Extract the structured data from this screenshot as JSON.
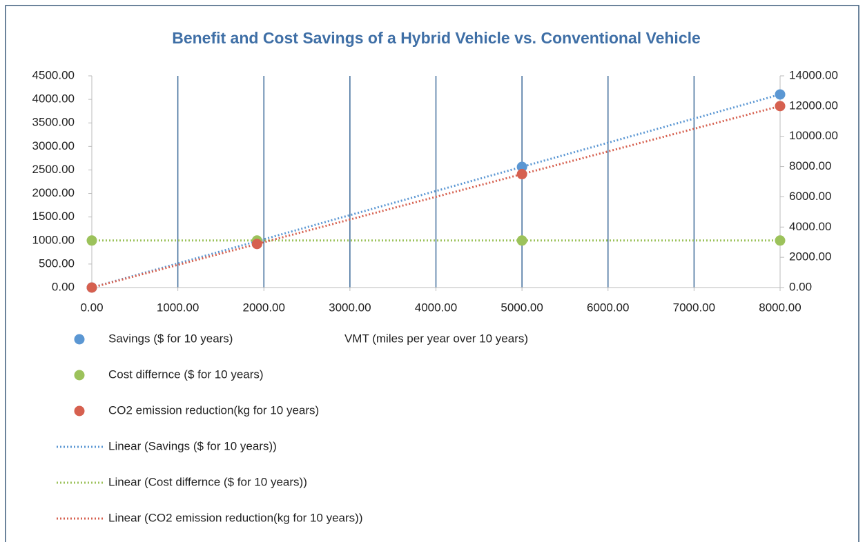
{
  "chart_data": {
    "type": "scatter",
    "title": "Benefit and Cost Savings of a Hybrid Vehicle vs. Conventional Vehicle",
    "xlabel": "VMT (miles per year over 10 years)",
    "x": [
      0,
      1920,
      5000,
      8000
    ],
    "series": [
      {
        "name": "Savings ($ for 10 years)",
        "trendline_name": "Linear (Savings ($ for 10 years))",
        "color": "#5b97d3",
        "values": [
          0,
          985,
          2565,
          4105
        ]
      },
      {
        "name": "Cost differnce ($ for 10 years)",
        "trendline_name": "Linear (Cost differnce ($ for 10 years))",
        "color": "#9cc25b",
        "values": [
          1000,
          1000,
          1000,
          1000
        ]
      },
      {
        "name": "CO2 emission reduction(kg for 10 years)",
        "trendline_name": "Linear (CO2 emission reduction(kg for 10 years))",
        "color": "#d6604f",
        "axis": "y2",
        "values": [
          0,
          2880,
          7500,
          12000
        ]
      }
    ],
    "xlim": [
      0,
      8000
    ],
    "xticks": [
      {
        "value": 0,
        "label": "0.00"
      },
      {
        "value": 1000,
        "label": "1000.00"
      },
      {
        "value": 2000,
        "label": "2000.00"
      },
      {
        "value": 3000,
        "label": "3000.00"
      },
      {
        "value": 4000,
        "label": "4000.00"
      },
      {
        "value": 5000,
        "label": "5000.00"
      },
      {
        "value": 6000,
        "label": "6000.00"
      },
      {
        "value": 7000,
        "label": "7000.00"
      },
      {
        "value": 8000,
        "label": "8000.00"
      }
    ],
    "ylim": [
      0,
      4500
    ],
    "yticks": [
      {
        "value": 0,
        "label": "0.00"
      },
      {
        "value": 500,
        "label": "500.00"
      },
      {
        "value": 1000,
        "label": "1000.00"
      },
      {
        "value": 1500,
        "label": "1500.00"
      },
      {
        "value": 2000,
        "label": "2000.00"
      },
      {
        "value": 2500,
        "label": "2500.00"
      },
      {
        "value": 3000,
        "label": "3000.00"
      },
      {
        "value": 3500,
        "label": "3500.00"
      },
      {
        "value": 4000,
        "label": "4000.00"
      },
      {
        "value": 4500,
        "label": "4500.00"
      }
    ],
    "y2lim": [
      0,
      14000
    ],
    "y2ticks": [
      {
        "value": 0,
        "label": "0.00"
      },
      {
        "value": 2000,
        "label": "2000.00"
      },
      {
        "value": 4000,
        "label": "4000.00"
      },
      {
        "value": 6000,
        "label": "6000.00"
      },
      {
        "value": 8000,
        "label": "8000.00"
      },
      {
        "value": 10000,
        "label": "10000.00"
      },
      {
        "value": 12000,
        "label": "12000.00"
      },
      {
        "value": 14000,
        "label": "14000.00"
      }
    ],
    "xgrid": true,
    "grid_color": "#3c6a99",
    "trendlines": "linear",
    "legend": "bottom-left"
  }
}
